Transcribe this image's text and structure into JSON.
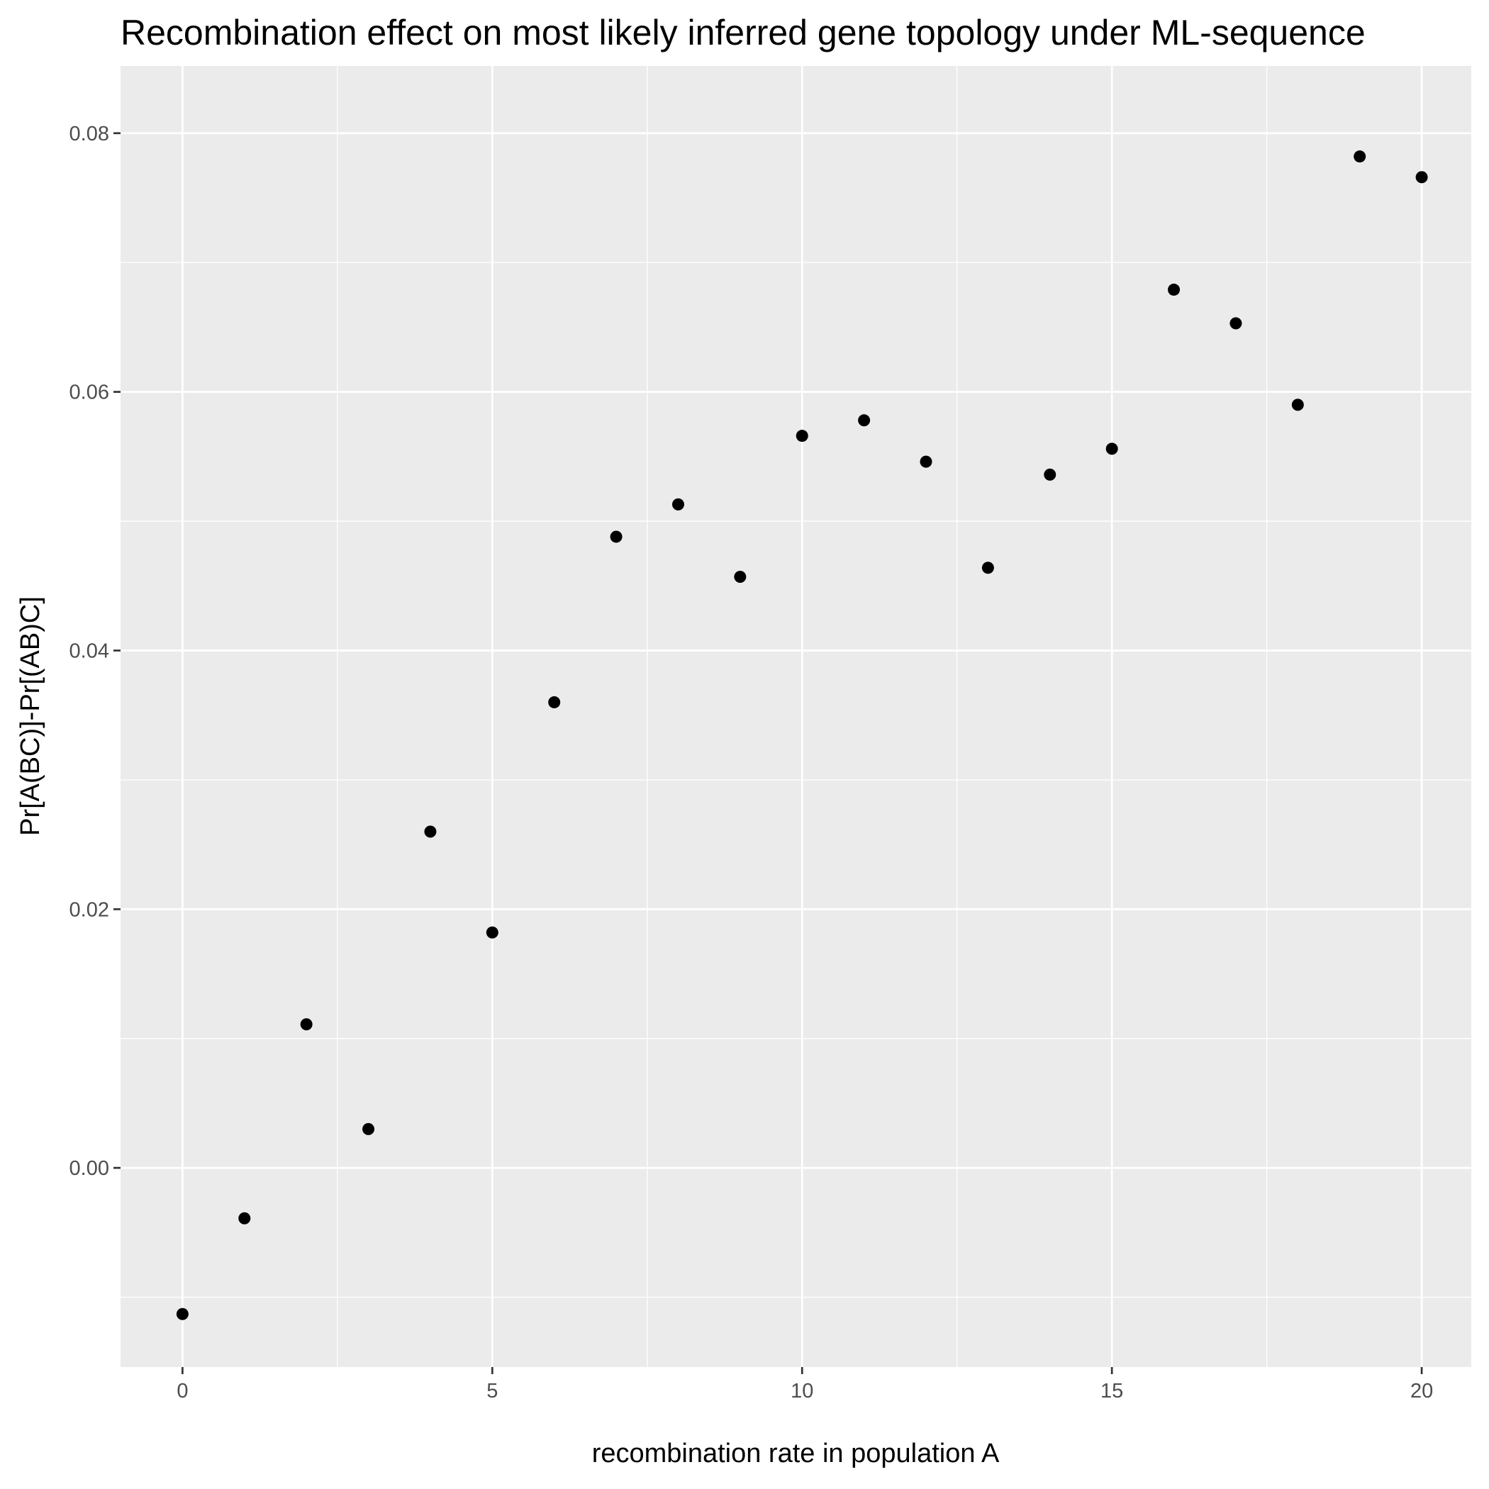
{
  "chart_data": {
    "type": "scatter",
    "title": "Recombination effect on most likely inferred gene topology under ML-sequence",
    "xlabel": "recombination rate in population A",
    "ylabel": "Pr[A(BC)]-Pr[(AB)C]",
    "xlim": [
      -1,
      20.8
    ],
    "ylim": [
      -0.0154,
      0.0852
    ],
    "x_ticks": [
      0,
      5,
      10,
      15,
      20
    ],
    "x_tick_labels": [
      "0",
      "5",
      "10",
      "15",
      "20"
    ],
    "y_ticks": [
      0.0,
      0.02,
      0.04,
      0.06,
      0.08
    ],
    "y_tick_labels": [
      "0.00",
      "0.02",
      "0.04",
      "0.06",
      "0.08"
    ],
    "grid": true,
    "series": [
      {
        "x": [
          0,
          1,
          2,
          3,
          4,
          5,
          6,
          7,
          8,
          9,
          10,
          11,
          12,
          13,
          14,
          15,
          16,
          17,
          18,
          19,
          20
        ],
        "y": [
          -0.0113,
          -0.0039,
          0.0111,
          0.003,
          0.026,
          0.0182,
          0.036,
          0.0488,
          0.0513,
          0.0457,
          0.0566,
          0.0578,
          0.0546,
          0.0464,
          0.0536,
          0.0556,
          0.0679,
          0.0653,
          0.059,
          0.0782,
          0.0766
        ]
      }
    ]
  },
  "colors": {
    "panel_background": "#ebebeb",
    "grid": "#ffffff",
    "points": "#000000"
  }
}
